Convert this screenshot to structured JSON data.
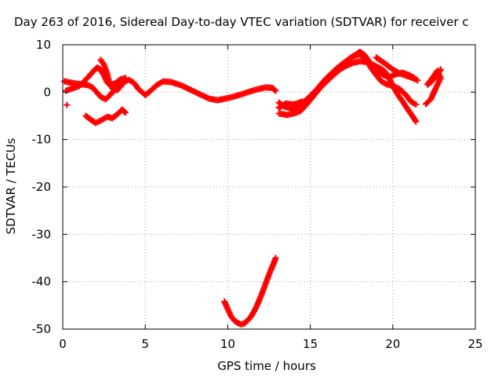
{
  "chart_data": {
    "type": "scatter",
    "title": "Day 263 of 2016, Sidereal Day-to-day VTEC variation (SDTVAR) for receiver c",
    "xlabel": "GPS time / hours",
    "ylabel": "SDTVAR / TECUs",
    "xlim": [
      0,
      25
    ],
    "ylim": [
      -50,
      10
    ],
    "xticks": [
      0,
      5,
      10,
      15,
      20,
      25
    ],
    "yticks": [
      10,
      0,
      -10,
      -20,
      -30,
      -40,
      -50
    ],
    "grid": true,
    "marker": "plus",
    "color": "#ff0000",
    "series": [
      {
        "points": [
          [
            0.1,
            2.3
          ],
          [
            0.5,
            2
          ],
          [
            1,
            1.7
          ],
          [
            1.5,
            1.5
          ],
          [
            1.8,
            1
          ],
          [
            2,
            0.2
          ],
          [
            2.3,
            -1
          ],
          [
            2.6,
            -1.5
          ],
          [
            2.9,
            -0.5
          ],
          [
            3.2,
            0.8
          ],
          [
            3.6,
            2
          ],
          [
            4,
            2.6
          ],
          [
            4.3,
            2
          ],
          [
            4.6,
            0.6
          ],
          [
            5,
            -0.6
          ],
          [
            5.3,
            0.2
          ],
          [
            5.7,
            1.5
          ],
          [
            6.1,
            2.3
          ],
          [
            6.6,
            2.1
          ],
          [
            7.2,
            1.4
          ],
          [
            7.8,
            0.4
          ],
          [
            8.4,
            -0.6
          ],
          [
            8.9,
            -1.4
          ],
          [
            9.4,
            -1.7
          ],
          [
            9.8,
            -1.4
          ],
          [
            10.3,
            -1
          ],
          [
            10.8,
            -0.5
          ],
          [
            11.3,
            0.1
          ],
          [
            11.8,
            0.6
          ],
          [
            12.3,
            1
          ],
          [
            12.7,
            0.9
          ],
          [
            12.9,
            0.3
          ]
        ]
      },
      {
        "points": [
          [
            0.2,
            0.3
          ],
          [
            0.6,
            0.8
          ],
          [
            1,
            1.3
          ],
          [
            1.3,
            2.3
          ],
          [
            1.6,
            3.4
          ],
          [
            1.9,
            4.6
          ],
          [
            2.1,
            5.2
          ],
          [
            2.3,
            4.7
          ],
          [
            2.5,
            3.5
          ],
          [
            2.7,
            2
          ],
          [
            2.9,
            1.5
          ],
          [
            3.2,
            1.9
          ],
          [
            3.5,
            2.7
          ],
          [
            3.8,
            3
          ]
        ]
      },
      {
        "points": [
          [
            2.3,
            6.8
          ],
          [
            2.5,
            5.8
          ],
          [
            2.7,
            3.9
          ],
          [
            2.8,
            2.3
          ],
          [
            3,
            0.8
          ],
          [
            3.3,
            0.4
          ],
          [
            3.6,
            1.6
          ]
        ]
      },
      {
        "points": [
          [
            1.4,
            -5
          ],
          [
            1.7,
            -5.8
          ],
          [
            2,
            -6.5
          ],
          [
            2.3,
            -6
          ],
          [
            2.7,
            -5.2
          ],
          [
            3,
            -5.5
          ],
          [
            3.3,
            -4.7
          ],
          [
            3.6,
            -3.7
          ],
          [
            3.8,
            -4.3
          ]
        ]
      },
      {
        "points": [
          [
            0.25,
            -2.7
          ]
        ]
      },
      {
        "points": [
          [
            13.1,
            -2.2
          ],
          [
            13.4,
            -3
          ],
          [
            13.7,
            -3.3
          ],
          [
            14,
            -3.8
          ],
          [
            14.3,
            -2.8
          ],
          [
            14.7,
            -1.8
          ],
          [
            15,
            -0.8
          ],
          [
            15.4,
            0.6
          ],
          [
            15.8,
            2.3
          ],
          [
            16.2,
            3.7
          ],
          [
            16.6,
            5
          ],
          [
            17,
            6.1
          ],
          [
            17.4,
            7.1
          ],
          [
            17.8,
            8
          ],
          [
            18,
            8.5
          ],
          [
            18.3,
            7.8
          ],
          [
            18.6,
            6.3
          ],
          [
            18.9,
            5
          ],
          [
            19.2,
            4.2
          ],
          [
            19.5,
            3.5
          ],
          [
            19.8,
            3.2
          ],
          [
            20.2,
            3.8
          ],
          [
            20.6,
            4.1
          ],
          [
            21,
            3.6
          ],
          [
            21.3,
            3
          ]
        ]
      },
      {
        "points": [
          [
            13.1,
            -4.5
          ],
          [
            13.6,
            -4.8
          ],
          [
            14,
            -4.5
          ],
          [
            14.4,
            -4
          ],
          [
            14.8,
            -2.5
          ],
          [
            15.2,
            -0.8
          ],
          [
            15.6,
            0.9
          ],
          [
            16,
            2.3
          ],
          [
            16.4,
            3.6
          ],
          [
            16.8,
            4.8
          ],
          [
            17.2,
            5.6
          ],
          [
            17.6,
            6.2
          ],
          [
            18,
            6.5
          ],
          [
            18.4,
            6.4
          ],
          [
            18.8,
            5.8
          ],
          [
            19.2,
            5.1
          ],
          [
            19.5,
            4.4
          ],
          [
            19.7,
            3.5
          ],
          [
            20,
            1.4
          ],
          [
            20.3,
            -0.5
          ],
          [
            20.6,
            -2
          ],
          [
            20.9,
            -3.6
          ],
          [
            21.2,
            -5.1
          ],
          [
            21.4,
            -6.2
          ]
        ]
      },
      {
        "points": [
          [
            17.2,
            6.5
          ],
          [
            17.6,
            7.6
          ],
          [
            18,
            8
          ],
          [
            18.4,
            6.8
          ],
          [
            18.7,
            5
          ],
          [
            19,
            3.6
          ],
          [
            19.3,
            2.3
          ],
          [
            19.6,
            1.7
          ],
          [
            20,
            1.3
          ],
          [
            20.4,
            0.7
          ],
          [
            20.8,
            -0.6
          ],
          [
            21.1,
            -2
          ],
          [
            21.4,
            -2.6
          ]
        ]
      },
      {
        "points": [
          [
            19,
            7.3
          ],
          [
            19.5,
            6.1
          ],
          [
            20,
            4.8
          ],
          [
            20.4,
            4
          ],
          [
            20.8,
            3.5
          ],
          [
            21.2,
            3
          ],
          [
            21.5,
            2.5
          ]
        ]
      },
      {
        "points": [
          [
            13.1,
            -3.3
          ],
          [
            13.5,
            -2.4
          ],
          [
            14,
            -2.6
          ],
          [
            14.5,
            -2
          ]
        ]
      },
      {
        "points": [
          [
            22,
            -2.5
          ],
          [
            22.3,
            -1.5
          ],
          [
            22.6,
            0.8
          ],
          [
            22.9,
            3
          ],
          [
            22.7,
            4.5
          ],
          [
            22.4,
            3
          ],
          [
            22.1,
            1.6
          ],
          [
            22.3,
            2.1
          ],
          [
            22.6,
            3.2
          ],
          [
            22.9,
            4.8
          ]
        ]
      },
      {
        "points": [
          [
            9.8,
            -44.2
          ],
          [
            10,
            -45.8
          ],
          [
            10.2,
            -47.3
          ],
          [
            10.4,
            -48.2
          ],
          [
            10.6,
            -48.7
          ],
          [
            10.8,
            -49
          ],
          [
            11,
            -48.8
          ],
          [
            11.2,
            -48.2
          ],
          [
            11.4,
            -47.4
          ],
          [
            11.6,
            -46.2
          ],
          [
            11.8,
            -44.8
          ],
          [
            12,
            -43.1
          ],
          [
            12.2,
            -41.3
          ],
          [
            12.4,
            -39.4
          ],
          [
            12.6,
            -37.6
          ],
          [
            12.8,
            -36
          ],
          [
            12.9,
            -35
          ]
        ]
      }
    ]
  }
}
